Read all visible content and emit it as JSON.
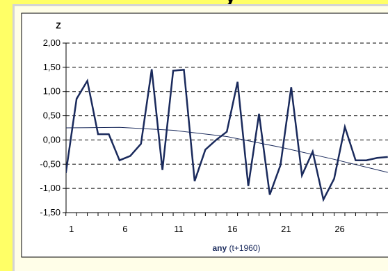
{
  "title_fragment": "y",
  "chart_data": {
    "type": "line",
    "ylabel": "Z",
    "xlabel_bold": "any",
    "xlabel_rest": "(t+1960)",
    "x_ticks": [
      1,
      6,
      11,
      16,
      21,
      26
    ],
    "y_ticks": [
      "-1,50",
      "-1,00",
      "-0,50",
      "0,00",
      "0,50",
      "1,00",
      "1,50",
      "2,00"
    ],
    "y_tick_values": [
      -1.5,
      -1.0,
      -0.5,
      0.0,
      0.5,
      1.0,
      1.5,
      2.0
    ],
    "ylim": [
      -1.5,
      2.0
    ],
    "xlim": [
      0.5,
      30.5
    ],
    "grid": "horizontal dashed",
    "colors": {
      "series": "#1a2a5c",
      "trend": "#1a2a5c",
      "grid": "#000000"
    },
    "series": [
      {
        "x": [
          1,
          2,
          3,
          4,
          5,
          6,
          7,
          8,
          9,
          10,
          11,
          12,
          13,
          14,
          15,
          16,
          17,
          18,
          19,
          20,
          21,
          22,
          23,
          24,
          25,
          26,
          27,
          28,
          29,
          30,
          31
        ],
        "values": [
          -0.68,
          0.85,
          1.22,
          0.12,
          0.12,
          -0.42,
          -0.33,
          -0.08,
          1.46,
          -0.62,
          1.43,
          1.45,
          -0.85,
          -0.2,
          0.0,
          0.17,
          1.2,
          -0.95,
          0.54,
          -1.13,
          -0.52,
          1.09,
          -0.73,
          -0.24,
          -1.23,
          -0.8,
          0.27,
          -0.42,
          -0.42,
          -0.37,
          -0.35
        ]
      },
      {
        "x": [
          1,
          6,
          11,
          16,
          21,
          26,
          31
        ],
        "values": [
          0.25,
          0.26,
          0.2,
          0.07,
          -0.15,
          -0.4,
          -0.67
        ]
      }
    ]
  }
}
